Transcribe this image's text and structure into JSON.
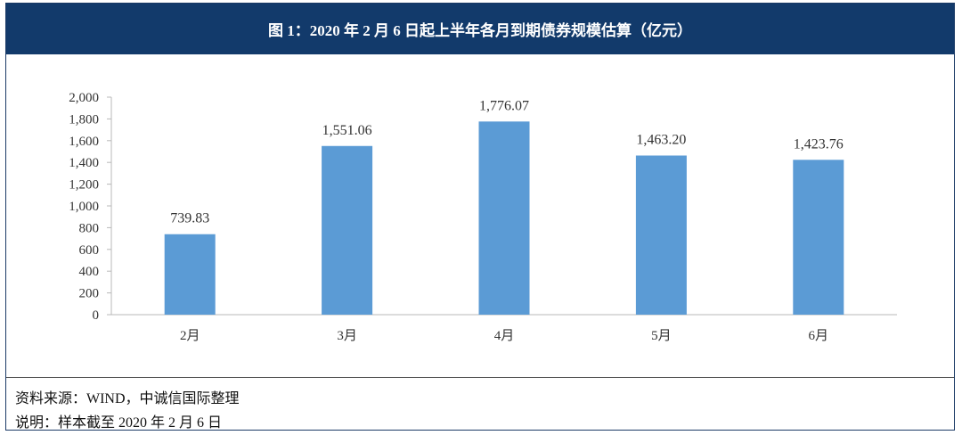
{
  "header": {
    "title": "图 1：2020 年 2 月 6 日起上半年各月到期债券规模估算（亿元）"
  },
  "chart_data": {
    "type": "bar",
    "title": "图 1：2020 年 2 月 6 日起上半年各月到期债券规模估算（亿元）",
    "categories": [
      "2月",
      "3月",
      "4月",
      "5月",
      "6月"
    ],
    "values": [
      739.83,
      1551.06,
      1776.07,
      1463.2,
      1423.76
    ],
    "value_labels": [
      "739.83",
      "1,551.06",
      "1,776.07",
      "1,463.20",
      "1,423.76"
    ],
    "ylim": [
      0,
      2000
    ],
    "yticks": [
      0,
      200,
      400,
      600,
      800,
      1000,
      1200,
      1400,
      1600,
      1800,
      2000
    ],
    "ytick_labels": [
      "0",
      "200",
      "400",
      "600",
      "800",
      "1,000",
      "1,200",
      "1,400",
      "1,600",
      "1,800",
      "2,000"
    ],
    "xlabel": "",
    "ylabel": "",
    "grid": false,
    "bar_color": "#5b9bd5"
  },
  "footer": {
    "source": "资料来源：WIND，中诚信国际整理",
    "note": "说明：样本截至 2020 年 2 月 6 日"
  }
}
